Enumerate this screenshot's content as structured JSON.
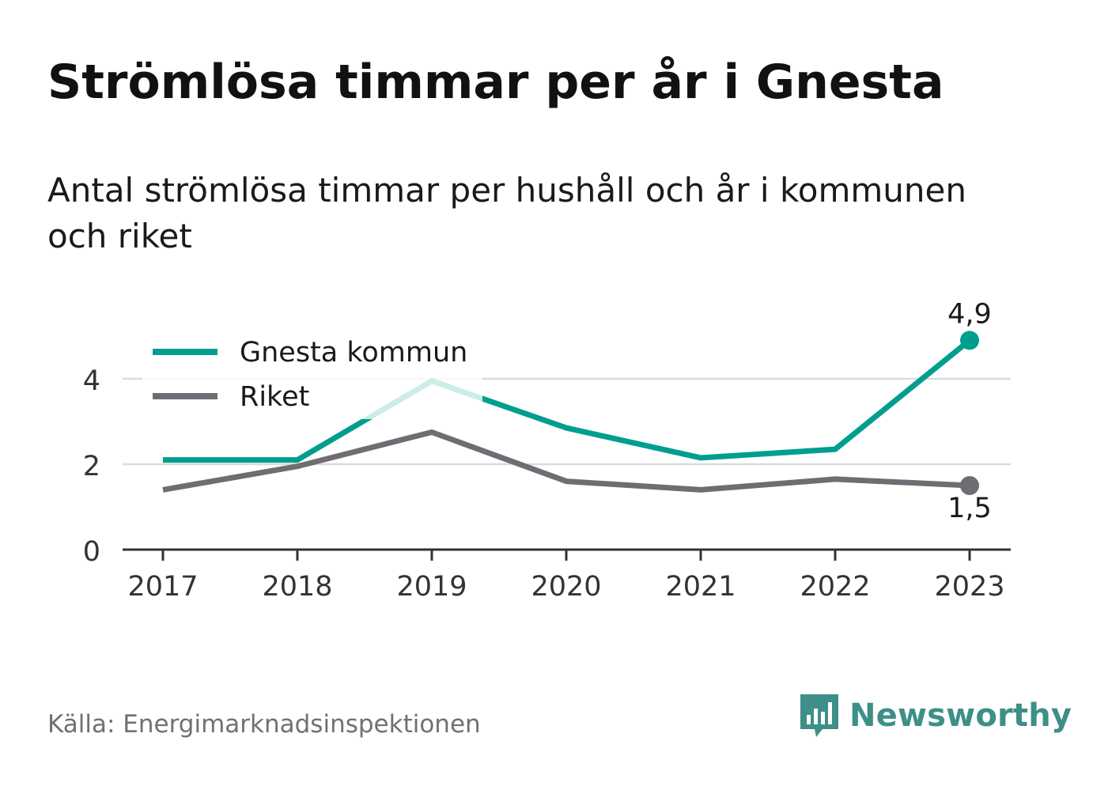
{
  "chart_data": {
    "type": "line",
    "title": "Strömlösa timmar per år i Gnesta",
    "subtitle": "Antal strömlösa timmar per hushåll och år i kommunen och riket",
    "categories": [
      "2017",
      "2018",
      "2019",
      "2020",
      "2021",
      "2022",
      "2023"
    ],
    "series": [
      {
        "name": "Gnesta kommun",
        "color": "#009e8f",
        "values": [
          2.1,
          2.1,
          3.95,
          2.85,
          2.15,
          2.35,
          4.9
        ],
        "end_label": "4,9"
      },
      {
        "name": "Riket",
        "color": "#6e6d73",
        "values": [
          1.4,
          1.95,
          2.75,
          1.6,
          1.4,
          1.65,
          1.5
        ],
        "end_label": "1,5"
      }
    ],
    "yticks": [
      "0",
      "2",
      "4"
    ],
    "ylim": [
      0,
      5.5
    ],
    "grid": true,
    "legend": "top-left"
  },
  "source": "Källa: Energimarknadsinspektionen",
  "brand": {
    "name": "Newsworthy",
    "color": "#3d8f88"
  }
}
